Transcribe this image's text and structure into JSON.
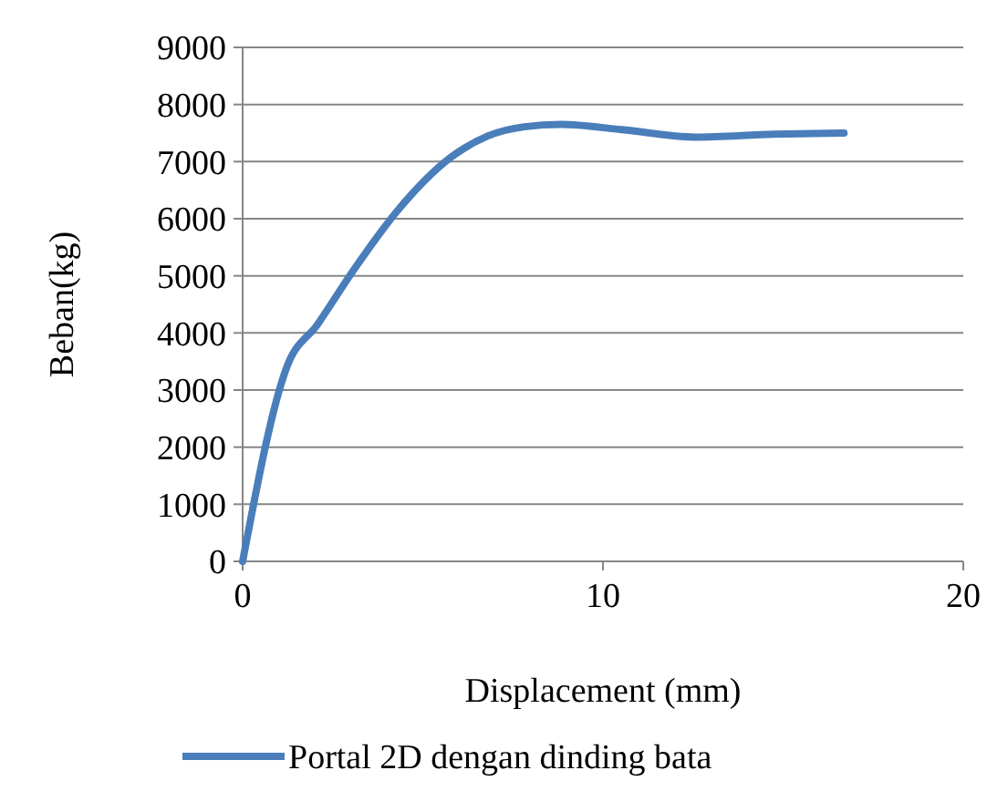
{
  "chart_data": {
    "type": "line",
    "xlabel": "Displacement (mm)",
    "ylabel": "Beban(kg)",
    "xlim": [
      0,
      20
    ],
    "xticks": [
      0,
      10,
      20
    ],
    "ylim": [
      0,
      9000
    ],
    "yticks": [
      0,
      1000,
      2000,
      3000,
      4000,
      5000,
      6000,
      7000,
      8000,
      9000
    ],
    "grid": "y",
    "legend": "bottom",
    "marker": "none",
    "line_style": "solid",
    "x": [
      0,
      1.23,
      2.08,
      3.09,
      4.27,
      5.79,
      6.81,
      7.82,
      8.83,
      10.52,
      12.55,
      14.75,
      16.69
    ],
    "series": [
      {
        "name": "Portal 2D dengan dinding bata",
        "color": "#4a7ebb",
        "values": [
          0,
          3410,
          4150,
          5110,
          6120,
          7080,
          7450,
          7610,
          7650,
          7560,
          7430,
          7480,
          7500
        ]
      }
    ]
  }
}
